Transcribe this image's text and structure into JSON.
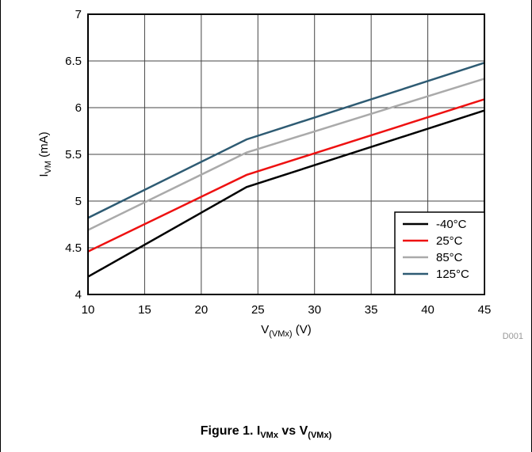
{
  "chart_data": {
    "type": "line",
    "x": [
      10,
      24,
      45
    ],
    "series": [
      {
        "name": "-40°C",
        "color": "#000000",
        "values": [
          4.19,
          5.15,
          5.97
        ]
      },
      {
        "name": "25°C",
        "color": "#ee1111",
        "values": [
          4.46,
          5.28,
          6.09
        ]
      },
      {
        "name": "85°C",
        "color": "#aaaaaa",
        "values": [
          4.69,
          5.52,
          6.31
        ]
      },
      {
        "name": "125°C",
        "color": "#2e5b73",
        "values": [
          4.82,
          5.66,
          6.48
        ]
      }
    ],
    "xlim": [
      10,
      45
    ],
    "ylim": [
      4,
      7
    ],
    "xticks": [
      "10",
      "15",
      "20",
      "25",
      "30",
      "35",
      "40",
      "45"
    ],
    "yticks": [
      "4",
      "4.5",
      "5",
      "5.5",
      "6",
      "6.5",
      "7"
    ],
    "xlabel": {
      "main": "V",
      "sub": "(VMx)",
      "unit": " (V)"
    },
    "ylabel": {
      "main": "I",
      "sub": "VM",
      "unit": " (mA)"
    },
    "grid": true,
    "legend_position": "bottom-right",
    "figure_id": "D001"
  },
  "caption": {
    "prefix": "Figure 1. I",
    "sub1": "VMx",
    "middle": " vs V",
    "sub2": "(VMx)"
  }
}
